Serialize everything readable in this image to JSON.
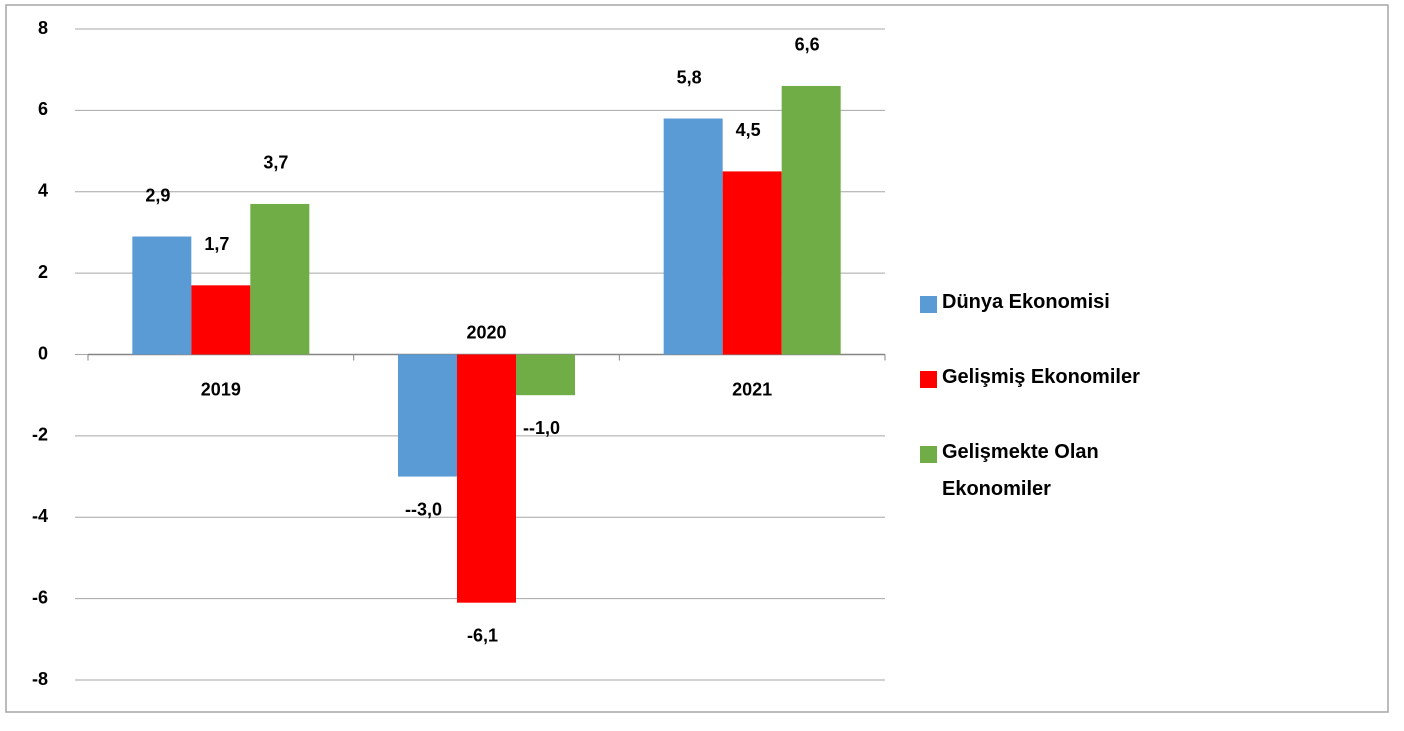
{
  "chart_data": {
    "type": "bar",
    "categories": [
      "2019",
      "2020",
      "2021"
    ],
    "series": [
      {
        "name": "Dünya Ekonomisi",
        "color": "#5b9bd5",
        "values": [
          2.9,
          -3.0,
          5.8
        ],
        "value_labels": [
          "2,9",
          "--3,0",
          "5,8"
        ]
      },
      {
        "name": "Gelişmiş Ekonomiler",
        "color": "#ff0000",
        "values": [
          1.7,
          -6.1,
          4.5
        ],
        "value_labels": [
          "1,7",
          "-6,1",
          "4,5"
        ]
      },
      {
        "name": "Gelişmekte Olan Ekonomiler",
        "color": "#70ad47",
        "values": [
          3.7,
          -1.0,
          6.6
        ],
        "value_labels": [
          "3,7",
          "--1,0",
          "6,6"
        ]
      }
    ],
    "ylim": [
      -8,
      8
    ],
    "yticks": [
      -8,
      -6,
      -4,
      -2,
      0,
      2,
      4,
      6,
      8
    ],
    "grid": true,
    "legend": "right"
  }
}
